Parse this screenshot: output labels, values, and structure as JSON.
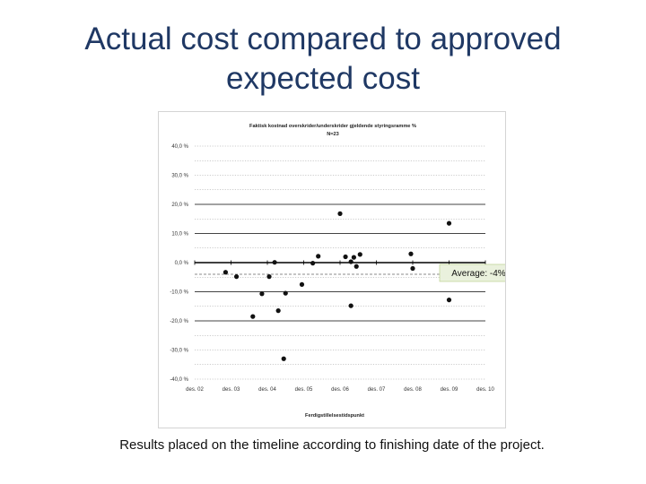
{
  "slide": {
    "title_line1": "Actual cost compared to approved",
    "title_line2": "expected cost",
    "caption": "Results placed on the timeline according to finishing date of the project."
  },
  "chart_data": {
    "type": "scatter",
    "title": "Faktisk kostnad overskrider/underskrider gjeldende styringsramme %",
    "subtitle": "N=23",
    "xlabel": "Ferdigstillelsestidspunkt",
    "ylabel": "",
    "x_tick_labels": [
      "des. 02",
      "des. 03",
      "des. 04",
      "des. 05",
      "des. 06",
      "des. 07",
      "des. 08",
      "des. 09",
      "des. 10"
    ],
    "y_ticks": [
      40,
      30,
      20,
      10,
      0,
      -10,
      -20,
      -30,
      -40
    ],
    "y_tick_labels": [
      "40,0 %",
      "30,0 %",
      "20,0 %",
      "10,0 %",
      "0,0 %",
      "-10,0 %",
      "-20,0 %",
      "-30,0 %",
      "-40,0 %"
    ],
    "xlim": [
      0,
      8
    ],
    "ylim": [
      -40,
      40
    ],
    "grid": true,
    "average_line": -4,
    "annotation": "Average: -4%",
    "points": [
      {
        "x": 0.85,
        "y": -3.3
      },
      {
        "x": 1.15,
        "y": -4.8
      },
      {
        "x": 1.6,
        "y": -18.5
      },
      {
        "x": 1.85,
        "y": -10.7
      },
      {
        "x": 2.05,
        "y": -4.8
      },
      {
        "x": 2.2,
        "y": 0.1
      },
      {
        "x": 2.3,
        "y": -16.5
      },
      {
        "x": 2.45,
        "y": -33
      },
      {
        "x": 2.5,
        "y": -10.5
      },
      {
        "x": 2.95,
        "y": -7.5
      },
      {
        "x": 3.25,
        "y": -0.2
      },
      {
        "x": 3.4,
        "y": 2.2
      },
      {
        "x": 4.0,
        "y": 16.8
      },
      {
        "x": 4.15,
        "y": 2.0
      },
      {
        "x": 4.3,
        "y": 0.3
      },
      {
        "x": 4.3,
        "y": -14.8
      },
      {
        "x": 4.38,
        "y": 1.8
      },
      {
        "x": 4.45,
        "y": -1.3
      },
      {
        "x": 4.55,
        "y": 2.8
      },
      {
        "x": 5.95,
        "y": 3.0
      },
      {
        "x": 6.0,
        "y": -2.0
      },
      {
        "x": 7.0,
        "y": 13.5
      },
      {
        "x": 7.0,
        "y": -12.8
      }
    ],
    "colors": {
      "point": "#111111",
      "zero_line": "#000000",
      "average_line": "#666666",
      "grid": "#999999",
      "annotation_bg": "#eaf1dd",
      "annotation_border": "#c3d69b"
    }
  }
}
